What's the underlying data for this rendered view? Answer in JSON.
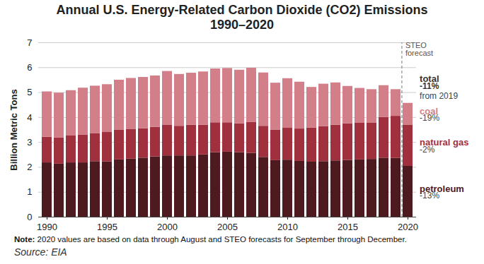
{
  "chart_data": {
    "type": "bar",
    "stacked": true,
    "title": "Annual U.S. Energy-Related Carbon Dioxide (CO2) Emissions",
    "subtitle": "1990–2020",
    "y_label": "Billion Metric Tons",
    "categories": [
      1990,
      1991,
      1992,
      1993,
      1994,
      1995,
      1996,
      1997,
      1998,
      1999,
      2000,
      2001,
      2002,
      2003,
      2004,
      2005,
      2006,
      2007,
      2008,
      2009,
      2010,
      2011,
      2012,
      2013,
      2014,
      2015,
      2016,
      2017,
      2018,
      2019,
      2020
    ],
    "xticks": [
      1990,
      1995,
      2000,
      2005,
      2010,
      2015,
      2020
    ],
    "ylim": [
      0,
      7
    ],
    "yticks": [
      0,
      1,
      2,
      3,
      4,
      5,
      6,
      7
    ],
    "grid": true,
    "series": [
      {
        "name": "petroleum",
        "color": "#4d1a20",
        "values": [
          2.18,
          2.13,
          2.18,
          2.18,
          2.23,
          2.22,
          2.3,
          2.33,
          2.37,
          2.42,
          2.46,
          2.46,
          2.46,
          2.5,
          2.59,
          2.61,
          2.59,
          2.56,
          2.4,
          2.27,
          2.29,
          2.24,
          2.21,
          2.23,
          2.26,
          2.28,
          2.3,
          2.32,
          2.37,
          2.36,
          2.04
        ]
      },
      {
        "name": "natural gas",
        "color": "#a0303d",
        "values": [
          1.03,
          1.05,
          1.08,
          1.11,
          1.13,
          1.18,
          1.2,
          1.2,
          1.18,
          1.19,
          1.24,
          1.19,
          1.23,
          1.19,
          1.2,
          1.18,
          1.16,
          1.24,
          1.25,
          1.23,
          1.28,
          1.3,
          1.37,
          1.41,
          1.43,
          1.47,
          1.47,
          1.45,
          1.63,
          1.69,
          1.66
        ]
      },
      {
        "name": "coal",
        "color": "#d27f89",
        "values": [
          1.82,
          1.8,
          1.82,
          1.89,
          1.9,
          1.92,
          2.0,
          2.04,
          2.06,
          2.06,
          2.15,
          2.08,
          2.09,
          2.14,
          2.16,
          2.18,
          2.15,
          2.18,
          2.14,
          1.88,
          1.99,
          1.88,
          1.63,
          1.7,
          1.7,
          1.5,
          1.4,
          1.35,
          1.28,
          1.07,
          0.87
        ]
      }
    ],
    "annotations": [
      {
        "text": "STEO forecast",
        "category": 2020
      },
      {
        "text": "total",
        "value": "-11%",
        "note": "from 2019"
      },
      {
        "series": "coal",
        "value": "-19%"
      },
      {
        "series": "natural gas",
        "value": "-2%"
      },
      {
        "series": "petroleum",
        "value": "-13%"
      }
    ],
    "note": "Note: 2020 values are based on data through August and STEO forecasts for September through December.",
    "source": "Source: EIA"
  }
}
